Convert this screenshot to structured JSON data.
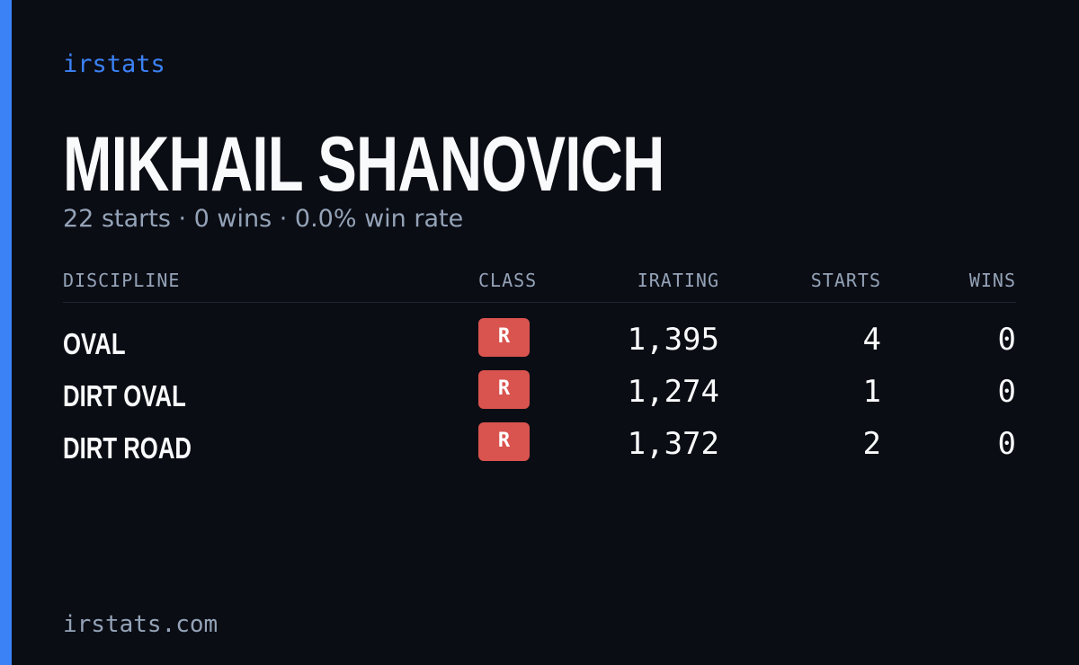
{
  "brand": "irstats",
  "driver": {
    "name": "MIKHAIL SHANOVICH",
    "summary": "22 starts · 0 wins · 0.0% win rate"
  },
  "table": {
    "headers": [
      "DISCIPLINE",
      "CLASS",
      "IRATING",
      "STARTS",
      "WINS"
    ],
    "rows": [
      [
        "OVAL",
        "R",
        "1,395",
        "4",
        "0"
      ],
      [
        "DIRT OVAL",
        "R",
        "1,274",
        "1",
        "0"
      ],
      [
        "DIRT ROAD",
        "R",
        "1,372",
        "2",
        "0"
      ]
    ]
  },
  "footer": "irstats.com"
}
